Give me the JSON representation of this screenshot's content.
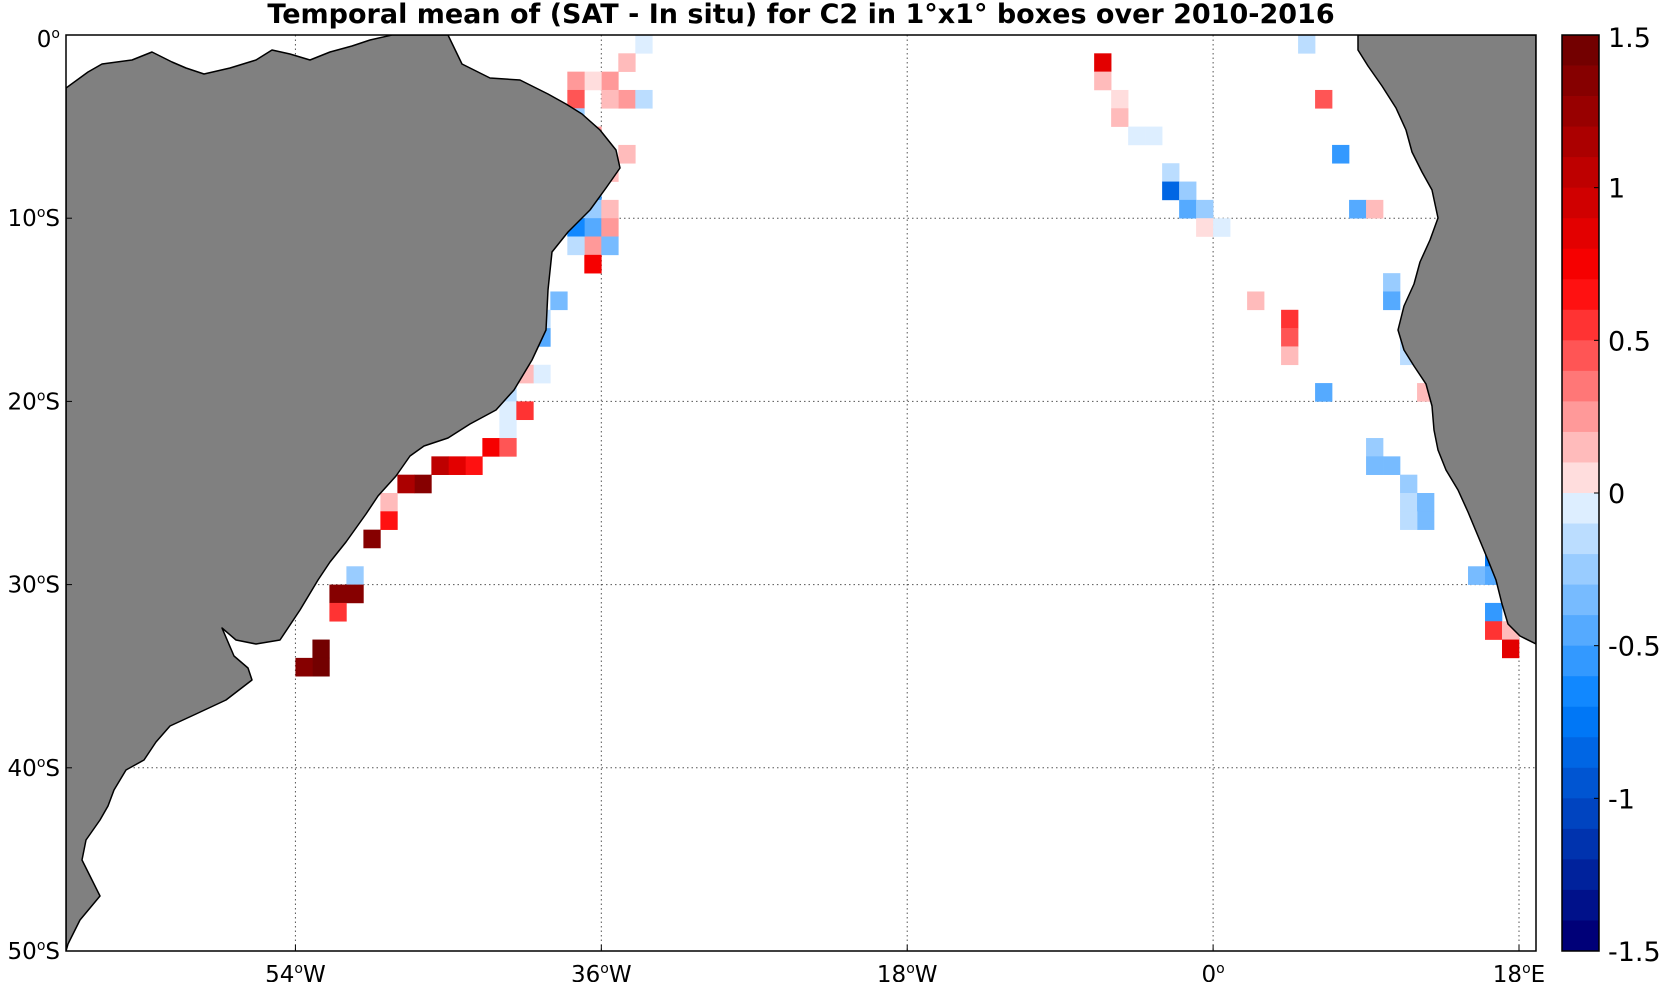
{
  "title": "Temporal mean of (SAT - In situ) for C2 in 1°x1° boxes over 2010-2016",
  "chart_data": {
    "type": "heatmap",
    "title": "Temporal mean of (SAT - In situ) for C2 in 1°x1° boxes over 2010-2016",
    "xlim": [
      -67.5,
      19
    ],
    "ylim": [
      -50,
      0
    ],
    "grid": true,
    "x_ticks": [
      {
        "value": -54,
        "deg": "54",
        "hemi": "W"
      },
      {
        "value": -36,
        "deg": "36",
        "hemi": "W"
      },
      {
        "value": -18,
        "deg": "18",
        "hemi": "W"
      },
      {
        "value": 0,
        "deg": "0",
        "hemi": ""
      },
      {
        "value": 18,
        "deg": "18",
        "hemi": "E"
      }
    ],
    "y_ticks": [
      {
        "value": 0,
        "deg": "0",
        "hemi": ""
      },
      {
        "value": -10,
        "deg": "10",
        "hemi": "S"
      },
      {
        "value": -20,
        "deg": "20",
        "hemi": "S"
      },
      {
        "value": -30,
        "deg": "30",
        "hemi": "S"
      },
      {
        "value": -40,
        "deg": "40",
        "hemi": "S"
      },
      {
        "value": -50,
        "deg": "50",
        "hemi": "S"
      }
    ],
    "colorbar": {
      "range": [
        -1.5,
        1.5
      ],
      "levels": 30,
      "ticks": [
        {
          "value": 1.5,
          "label": "1.5"
        },
        {
          "value": 1,
          "label": "1"
        },
        {
          "value": 0.5,
          "label": "0.5"
        },
        {
          "value": 0,
          "label": "0"
        },
        {
          "value": -0.5,
          "label": "-0.5"
        },
        {
          "value": -1,
          "label": "-1"
        },
        {
          "value": -1.5,
          "label": "-1.5"
        }
      ]
    },
    "land_color": "#808080",
    "cells": [
      {
        "lon": -34,
        "lat": 0,
        "v": -0.05
      },
      {
        "lon": -35,
        "lat": -1,
        "v": 0.15
      },
      {
        "lon": -36,
        "lat": -2,
        "v": 0.25
      },
      {
        "lon": -37,
        "lat": -2,
        "v": 0.1
      },
      {
        "lon": -38,
        "lat": -2,
        "v": 0.3
      },
      {
        "lon": -38,
        "lat": -3,
        "v": 0.45
      },
      {
        "lon": -38,
        "lat": -4,
        "v": -0.25
      },
      {
        "lon": -35,
        "lat": -3,
        "v": 0.25
      },
      {
        "lon": -36,
        "lat": -3,
        "v": 0.15
      },
      {
        "lon": -34,
        "lat": -3,
        "v": -0.15
      },
      {
        "lon": -35,
        "lat": -6,
        "v": 0.2
      },
      {
        "lon": -36,
        "lat": -7,
        "v": 0.15
      },
      {
        "lon": -37,
        "lat": -5,
        "v": 0.3
      },
      {
        "lon": -37,
        "lat": -7,
        "v": -0.75
      },
      {
        "lon": -37,
        "lat": -8,
        "v": -0.6
      },
      {
        "lon": -37,
        "lat": -9,
        "v": -0.25
      },
      {
        "lon": -37,
        "lat": -10,
        "v": -0.45
      },
      {
        "lon": -37,
        "lat": -11,
        "v": 0.25
      },
      {
        "lon": -37,
        "lat": -12,
        "v": 0.8
      },
      {
        "lon": -38,
        "lat": -10,
        "v": -0.7
      },
      {
        "lon": -38,
        "lat": -11,
        "v": -0.15
      },
      {
        "lon": -36,
        "lat": -9,
        "v": 0.15
      },
      {
        "lon": -36,
        "lat": -10,
        "v": 0.25
      },
      {
        "lon": -36,
        "lat": -11,
        "v": -0.4
      },
      {
        "lon": -39,
        "lat": -14,
        "v": -0.35
      },
      {
        "lon": -40,
        "lat": -15,
        "v": -0.15
      },
      {
        "lon": -40,
        "lat": -16,
        "v": -0.5
      },
      {
        "lon": -40,
        "lat": -18,
        "v": -0.1
      },
      {
        "lon": -41,
        "lat": -18,
        "v": 0.2
      },
      {
        "lon": -42,
        "lat": -19,
        "v": -0.15
      },
      {
        "lon": -42,
        "lat": -20,
        "v": -0.1
      },
      {
        "lon": -42,
        "lat": -21,
        "v": -0.1
      },
      {
        "lon": -41,
        "lat": -20,
        "v": 0.55
      },
      {
        "lon": -43,
        "lat": -22,
        "v": 0.75
      },
      {
        "lon": -42,
        "lat": -22,
        "v": 0.5
      },
      {
        "lon": -44,
        "lat": -23,
        "v": 0.65
      },
      {
        "lon": -45,
        "lat": -23,
        "v": 0.9
      },
      {
        "lon": -46,
        "lat": -23,
        "v": 1.1
      },
      {
        "lon": -47,
        "lat": -24,
        "v": 1.4
      },
      {
        "lon": -48,
        "lat": -24,
        "v": 1.2
      },
      {
        "lon": -49,
        "lat": -25,
        "v": 0.2
      },
      {
        "lon": -49,
        "lat": -26,
        "v": 0.65
      },
      {
        "lon": -50,
        "lat": -27,
        "v": 1.4
      },
      {
        "lon": -51,
        "lat": -29,
        "v": -0.3
      },
      {
        "lon": -51,
        "lat": -30,
        "v": 1.4
      },
      {
        "lon": -52,
        "lat": -30,
        "v": 1.35
      },
      {
        "lon": -52,
        "lat": -31,
        "v": 0.55
      },
      {
        "lon": -53,
        "lat": -33,
        "v": 1.45
      },
      {
        "lon": -53,
        "lat": -34,
        "v": 1.45
      },
      {
        "lon": -54,
        "lat": -34,
        "v": 1.4
      },
      {
        "lon": -7,
        "lat": -1,
        "v": 0.9
      },
      {
        "lon": -7,
        "lat": -2,
        "v": 0.15
      },
      {
        "lon": -6,
        "lat": -3,
        "v": 0.1
      },
      {
        "lon": -6,
        "lat": -4,
        "v": 0.15
      },
      {
        "lon": -5,
        "lat": -5,
        "v": -0.1
      },
      {
        "lon": -4,
        "lat": -5,
        "v": -0.1
      },
      {
        "lon": -3,
        "lat": -7,
        "v": -0.2
      },
      {
        "lon": -3,
        "lat": -8,
        "v": -0.9
      },
      {
        "lon": -2,
        "lat": -8,
        "v": -0.25
      },
      {
        "lon": -2,
        "lat": -9,
        "v": -0.5
      },
      {
        "lon": -1,
        "lat": -9,
        "v": -0.3
      },
      {
        "lon": -1,
        "lat": -10,
        "v": 0.1
      },
      {
        "lon": 0,
        "lat": -10,
        "v": -0.05
      },
      {
        "lon": 5,
        "lat": 0,
        "v": -0.2
      },
      {
        "lon": 6,
        "lat": -3,
        "v": 0.5
      },
      {
        "lon": 7,
        "lat": -6,
        "v": -0.6
      },
      {
        "lon": 8,
        "lat": -9,
        "v": -0.5
      },
      {
        "lon": 9,
        "lat": -9,
        "v": 0.15
      },
      {
        "lon": 2,
        "lat": -14,
        "v": 0.15
      },
      {
        "lon": 4,
        "lat": -15,
        "v": 0.6
      },
      {
        "lon": 4,
        "lat": -16,
        "v": 0.45
      },
      {
        "lon": 4,
        "lat": -17,
        "v": 0.2
      },
      {
        "lon": 10,
        "lat": -13,
        "v": -0.25
      },
      {
        "lon": 10,
        "lat": -14,
        "v": -0.5
      },
      {
        "lon": 11,
        "lat": -16,
        "v": -0.2
      },
      {
        "lon": 11,
        "lat": -17,
        "v": -0.15
      },
      {
        "lon": 12,
        "lat": -19,
        "v": 0.15
      },
      {
        "lon": 6,
        "lat": -19,
        "v": -0.45
      },
      {
        "lon": 9,
        "lat": -22,
        "v": -0.3
      },
      {
        "lon": 9,
        "lat": -23,
        "v": -0.4
      },
      {
        "lon": 10,
        "lat": -23,
        "v": -0.4
      },
      {
        "lon": 11,
        "lat": -24,
        "v": -0.25
      },
      {
        "lon": 11,
        "lat": -25,
        "v": -0.15
      },
      {
        "lon": 12,
        "lat": -25,
        "v": -0.4
      },
      {
        "lon": 12,
        "lat": -26,
        "v": -0.4
      },
      {
        "lon": 11,
        "lat": -26,
        "v": -0.2
      },
      {
        "lon": 14,
        "lat": -22,
        "v": -0.2
      },
      {
        "lon": 14,
        "lat": -23,
        "v": -0.7
      },
      {
        "lon": 15,
        "lat": -29,
        "v": -0.4
      },
      {
        "lon": 16,
        "lat": -28,
        "v": -0.8
      },
      {
        "lon": 16,
        "lat": -29,
        "v": -0.5
      },
      {
        "lon": 16,
        "lat": -31,
        "v": -0.6
      },
      {
        "lon": 17,
        "lat": -30,
        "v": -0.9
      },
      {
        "lon": 16,
        "lat": -32,
        "v": 0.55
      },
      {
        "lon": 17,
        "lat": -32,
        "v": 0.15
      },
      {
        "lon": 17,
        "lat": -33,
        "v": 0.9
      }
    ]
  }
}
